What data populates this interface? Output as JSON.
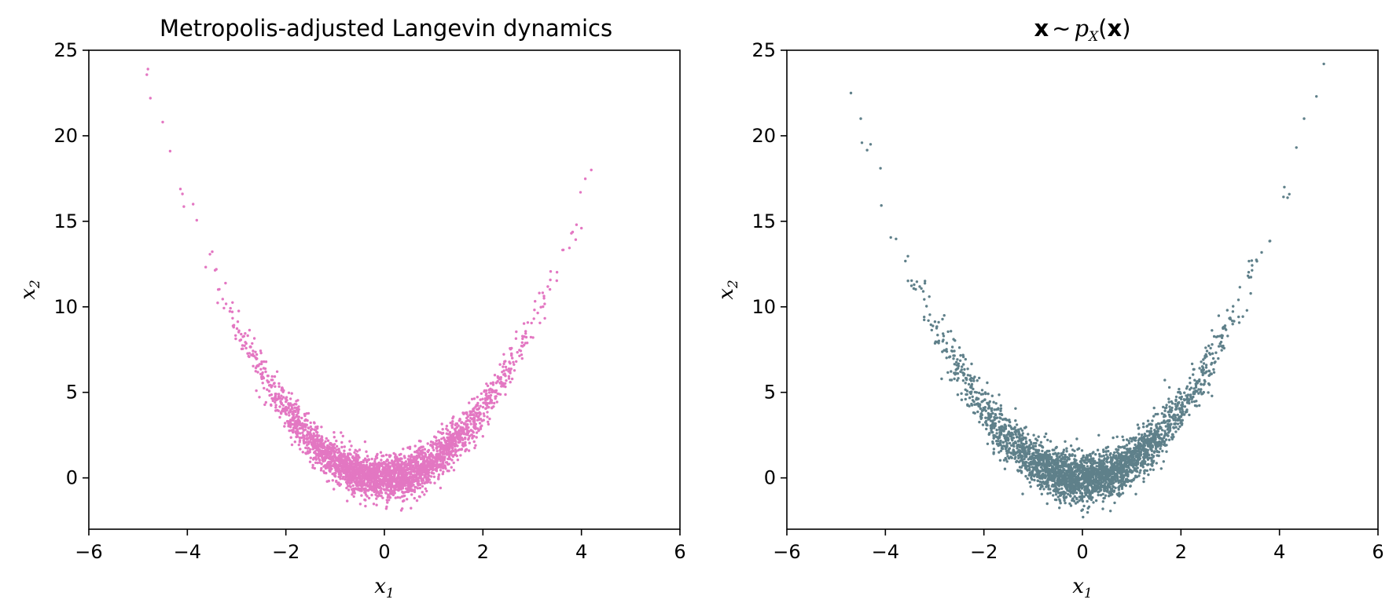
{
  "chart_data": [
    {
      "type": "scatter",
      "title": "Metropolis-adjusted Langevin dynamics",
      "xlabel": "x",
      "xlabel_sub": "1",
      "ylabel": "x",
      "ylabel_sub": "2",
      "xlim": [
        -6,
        6
      ],
      "ylim": [
        -3,
        25
      ],
      "xticks": [
        -6,
        -4,
        -2,
        0,
        2,
        4,
        6
      ],
      "xtick_labels": [
        "−6",
        "−4",
        "−2",
        "0",
        "2",
        "4",
        "6"
      ],
      "yticks": [
        0,
        5,
        10,
        15,
        20,
        25
      ],
      "ytick_labels": [
        "0",
        "5",
        "10",
        "15",
        "20",
        "25"
      ],
      "color": "#e377c2",
      "grid": false,
      "n_points": 3000,
      "distribution": "x1 ~ N(0, 1.3), x2 ≈ x1^2 + N(0, 0.6)",
      "highlight_points": [
        {
          "x": -4.8,
          "y": 23.9
        },
        {
          "x": -4.75,
          "y": 22.2
        },
        {
          "x": -4.5,
          "y": 20.8
        },
        {
          "x": -4.35,
          "y": 19.1
        },
        {
          "x": -4.1,
          "y": 16.6
        },
        {
          "x": 4.2,
          "y": 18.0
        },
        {
          "x": 3.9,
          "y": 14.8
        },
        {
          "x": 4.0,
          "y": 14.6
        }
      ]
    },
    {
      "type": "scatter",
      "title": "x ~ p",
      "title_bold_symbol": "x",
      "title_tilde": "∼",
      "title_p": "p",
      "title_p_sub": "X",
      "title_paren_open": "(",
      "title_arg": "x",
      "title_paren_close": ")",
      "xlabel": "x",
      "xlabel_sub": "1",
      "ylabel": "x",
      "ylabel_sub": "2",
      "xlim": [
        -6,
        6
      ],
      "ylim": [
        -3,
        25
      ],
      "xticks": [
        -6,
        -4,
        -2,
        0,
        2,
        4,
        6
      ],
      "xtick_labels": [
        "−6",
        "−4",
        "−2",
        "0",
        "2",
        "4",
        "6"
      ],
      "yticks": [
        0,
        5,
        10,
        15,
        20,
        25
      ],
      "ytick_labels": [
        "0",
        "5",
        "10",
        "15",
        "20",
        "25"
      ],
      "color": "#5f808a",
      "grid": false,
      "n_points": 3000,
      "distribution": "x1 ~ N(0, 1.3), x2 ≈ x1^2 + N(0, 0.7)",
      "highlight_points": [
        {
          "x": -4.7,
          "y": 22.5
        },
        {
          "x": -4.5,
          "y": 21.0
        },
        {
          "x": -4.3,
          "y": 19.5
        },
        {
          "x": -4.1,
          "y": 18.1
        },
        {
          "x": 4.9,
          "y": 24.2
        },
        {
          "x": 4.75,
          "y": 22.3
        },
        {
          "x": 4.5,
          "y": 21.0
        },
        {
          "x": 4.1,
          "y": 17.0
        }
      ]
    }
  ]
}
